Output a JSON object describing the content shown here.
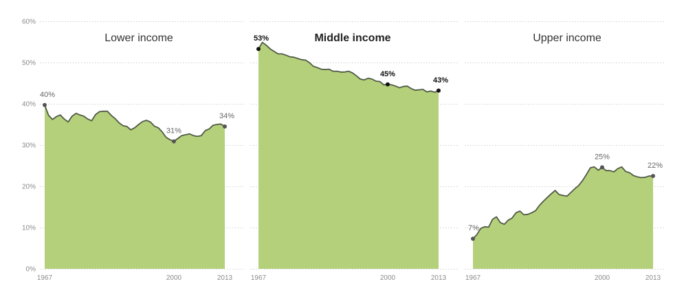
{
  "colors": {
    "area_fill": "#b5d07a",
    "line": "#4f5a45",
    "point_default": "#555555",
    "point_highlight": "#111111"
  },
  "chart_data": {
    "type": "area",
    "ylim": [
      0,
      60
    ],
    "y_ticks": [
      "0%",
      "10%",
      "20%",
      "30%",
      "40%",
      "50%",
      "60%"
    ],
    "x_range": [
      1967,
      2013
    ],
    "x_ticks": [
      "1967",
      "2000",
      "2013"
    ],
    "grid": true,
    "panels": [
      {
        "title": "Lower income",
        "emphasis": false,
        "x": [
          1967,
          1968,
          1969,
          1970,
          1971,
          1972,
          1973,
          1974,
          1975,
          1976,
          1977,
          1978,
          1979,
          1980,
          1981,
          1982,
          1983,
          1984,
          1985,
          1986,
          1987,
          1988,
          1989,
          1990,
          1991,
          1992,
          1993,
          1994,
          1995,
          1996,
          1997,
          1998,
          1999,
          2000,
          2001,
          2002,
          2003,
          2004,
          2005,
          2006,
          2007,
          2008,
          2009,
          2010,
          2011,
          2012,
          2013
        ],
        "values": [
          39.7,
          37.2,
          36.2,
          36.9,
          37.3,
          36.3,
          35.6,
          37.0,
          37.7,
          37.3,
          37.0,
          36.3,
          35.9,
          37.4,
          38.1,
          38.2,
          38.2,
          37.2,
          36.4,
          35.4,
          34.7,
          34.5,
          33.7,
          34.2,
          35.0,
          35.7,
          36.0,
          35.6,
          34.6,
          34.2,
          33.2,
          31.9,
          31.3,
          30.9,
          31.6,
          32.3,
          32.5,
          32.7,
          32.3,
          32.1,
          32.3,
          33.5,
          33.9,
          34.8,
          35.0,
          35.1,
          34.5
        ],
        "annotations": [
          {
            "year": 1967,
            "value": 39.7,
            "label": "40%",
            "place": "above"
          },
          {
            "year": 2000,
            "value": 30.9,
            "label": "31%",
            "place": "above"
          },
          {
            "year": 2013,
            "value": 34.5,
            "label": "34%",
            "place": "above"
          }
        ]
      },
      {
        "title": "Middle income",
        "emphasis": true,
        "x": [
          1967,
          1968,
          1969,
          1970,
          1971,
          1972,
          1973,
          1974,
          1975,
          1976,
          1977,
          1978,
          1979,
          1980,
          1981,
          1982,
          1983,
          1984,
          1985,
          1986,
          1987,
          1988,
          1989,
          1990,
          1991,
          1992,
          1993,
          1994,
          1995,
          1996,
          1997,
          1998,
          1999,
          2000,
          2001,
          2002,
          2003,
          2004,
          2005,
          2006,
          2007,
          2008,
          2009,
          2010,
          2011,
          2012,
          2013
        ],
        "values": [
          53.3,
          54.9,
          54.2,
          53.3,
          52.7,
          52.1,
          52.1,
          51.8,
          51.4,
          51.3,
          51.0,
          50.7,
          50.6,
          50.0,
          49.1,
          48.8,
          48.4,
          48.3,
          48.4,
          47.9,
          47.9,
          47.7,
          47.7,
          47.9,
          47.5,
          46.8,
          46.0,
          45.8,
          46.2,
          46.0,
          45.5,
          45.4,
          44.6,
          44.7,
          44.6,
          44.3,
          43.9,
          44.2,
          44.3,
          43.7,
          43.3,
          43.4,
          43.5,
          42.9,
          43.1,
          42.8,
          43.2
        ],
        "annotations": [
          {
            "year": 1967,
            "value": 53.3,
            "label": "53%",
            "place": "above"
          },
          {
            "year": 2000,
            "value": 44.7,
            "label": "45%",
            "place": "above"
          },
          {
            "year": 2013,
            "value": 43.2,
            "label": "43%",
            "place": "above"
          }
        ]
      },
      {
        "title": "Upper income",
        "emphasis": false,
        "x": [
          1967,
          1968,
          1969,
          1970,
          1971,
          1972,
          1973,
          1974,
          1975,
          1976,
          1977,
          1978,
          1979,
          1980,
          1981,
          1982,
          1983,
          1984,
          1985,
          1986,
          1987,
          1988,
          1989,
          1990,
          1991,
          1992,
          1993,
          1994,
          1995,
          1996,
          1997,
          1998,
          1999,
          2000,
          2001,
          2002,
          2003,
          2004,
          2005,
          2006,
          2007,
          2008,
          2009,
          2010,
          2011,
          2012,
          2013
        ],
        "values": [
          7.3,
          8.3,
          9.8,
          10.2,
          10.1,
          12.0,
          12.6,
          11.2,
          10.8,
          11.8,
          12.3,
          13.6,
          14.0,
          13.1,
          13.2,
          13.6,
          14.1,
          15.4,
          16.4,
          17.3,
          18.2,
          19.0,
          18.0,
          17.8,
          17.6,
          18.5,
          19.4,
          20.2,
          21.4,
          22.9,
          24.5,
          24.7,
          23.9,
          24.6,
          23.8,
          23.8,
          23.5,
          24.3,
          24.7,
          23.6,
          23.3,
          22.6,
          22.3,
          22.1,
          22.2,
          22.5,
          22.5
        ],
        "annotations": [
          {
            "year": 1967,
            "value": 7.3,
            "label": "7%",
            "place": "above"
          },
          {
            "year": 2000,
            "value": 24.6,
            "label": "25%",
            "place": "above"
          },
          {
            "year": 2013,
            "value": 22.5,
            "label": "22%",
            "place": "above"
          }
        ]
      }
    ]
  }
}
